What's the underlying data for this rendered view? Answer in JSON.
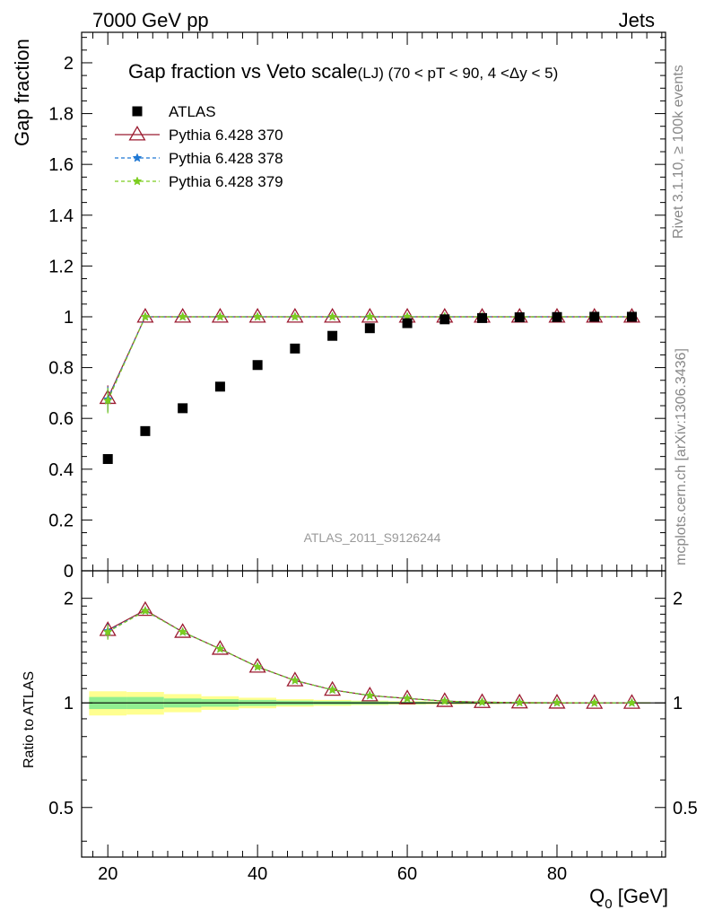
{
  "header": {
    "left": "7000 GeV pp",
    "right": "Jets"
  },
  "side_labels": {
    "rivet": "Rivet 3.1.10, ≥ 100k events",
    "mcplots": "mcplots.cern.ch [arXiv:1306.3436]"
  },
  "chart_data": [
    {
      "type": "scatter",
      "title": "Gap fraction vs Veto scale",
      "subtitle": "(LJ) (70 < pT <  90, 4 <Δy < 5)",
      "ylabel": "Gap fraction",
      "xlabel": "",
      "watermark": "ATLAS_2011_S9126244",
      "xlim": [
        16.5,
        94.5
      ],
      "ylim": [
        0,
        2.12
      ],
      "yticks": [
        0,
        0.2,
        0.4,
        0.6,
        0.8,
        1,
        1.2,
        1.4,
        1.6,
        1.8,
        2
      ],
      "ytick_labels": [
        "0",
        "0.2",
        "0.4",
        "0.6",
        "0.8",
        "1",
        "1.2",
        "1.4",
        "1.6",
        "1.8",
        "2"
      ],
      "legend_position": "top-left",
      "x": [
        20,
        25,
        30,
        35,
        40,
        45,
        50,
        55,
        60,
        65,
        70,
        75,
        80,
        85,
        90
      ],
      "series": [
        {
          "name": "ATLAS",
          "marker": "square",
          "color": "#000000",
          "values": [
            0.44,
            0.55,
            0.64,
            0.725,
            0.81,
            0.875,
            0.925,
            0.955,
            0.975,
            0.99,
            0.995,
            0.998,
            0.999,
            1.0,
            1.0
          ]
        },
        {
          "name": "Pythia 6.428 370",
          "marker": "triangle",
          "color": "#9b1b30",
          "line": "solid",
          "values": [
            0.68,
            1.0,
            1.0,
            1.0,
            1.0,
            1.0,
            1.0,
            1.0,
            1.0,
            1.0,
            1.0,
            1.0,
            1.0,
            1.0,
            1.0
          ],
          "errors": [
            0.05,
            0,
            0,
            0,
            0,
            0,
            0,
            0,
            0,
            0,
            0,
            0,
            0,
            0,
            0
          ]
        },
        {
          "name": "Pythia 6.428 378",
          "marker": "star",
          "color": "#1f78d4",
          "line": "dashed",
          "values": [
            0.675,
            1.0,
            1.0,
            1.0,
            1.0,
            1.0,
            1.0,
            1.0,
            1.0,
            1.0,
            1.0,
            1.0,
            1.0,
            1.0,
            1.0
          ],
          "errors": [
            0.05,
            0,
            0,
            0,
            0,
            0,
            0,
            0,
            0,
            0,
            0,
            0,
            0,
            0,
            0
          ]
        },
        {
          "name": "Pythia 6.428 379",
          "marker": "star",
          "color": "#7ccd1f",
          "line": "dashed",
          "values": [
            0.67,
            1.0,
            1.0,
            1.0,
            1.0,
            1.0,
            1.0,
            1.0,
            1.0,
            1.0,
            1.0,
            1.0,
            1.0,
            1.0,
            1.0
          ],
          "errors": [
            0.05,
            0,
            0,
            0,
            0,
            0,
            0,
            0,
            0,
            0,
            0,
            0,
            0,
            0,
            0
          ]
        }
      ]
    },
    {
      "type": "scatter",
      "ylabel": "Ratio to ATLAS",
      "xlabel": "Q",
      "xlabel_sub": "0",
      "xlabel_unit": " [GeV]",
      "xlim": [
        16.5,
        94.5
      ],
      "ylim": [
        0.36,
        2.4
      ],
      "log_y": true,
      "xticks": [
        20,
        40,
        60,
        80
      ],
      "xtick_labels": [
        "20",
        "40",
        "60",
        "80"
      ],
      "yticks": [
        0.5,
        1,
        2
      ],
      "ytick_labels": [
        "0.5",
        "1",
        "2"
      ],
      "x": [
        20,
        25,
        30,
        35,
        40,
        45,
        50,
        55,
        60,
        65,
        70,
        75,
        80,
        85,
        90
      ],
      "bands": {
        "x_edges": [
          17.5,
          22.5,
          27.5,
          32.5,
          37.5,
          42.5,
          47.5,
          52.5,
          57.5,
          62.5,
          67.5,
          72.5,
          77.5,
          82.5,
          87.5,
          92.5
        ],
        "stat_color": "#90ee90",
        "total_color": "#ffff90",
        "stat": [
          0.04,
          0.04,
          0.03,
          0.025,
          0.02,
          0.015,
          0.012,
          0.01,
          0.008,
          0.006,
          0.005,
          0.004,
          0.003,
          0.003,
          0.003
        ],
        "total": [
          0.08,
          0.075,
          0.06,
          0.045,
          0.035,
          0.025,
          0.02,
          0.015,
          0.012,
          0.01,
          0.008,
          0.006,
          0.005,
          0.005,
          0.005
        ]
      },
      "series": [
        {
          "name": "Pythia 6.428 370",
          "color": "#9b1b30",
          "values": [
            1.62,
            1.85,
            1.6,
            1.43,
            1.27,
            1.16,
            1.09,
            1.05,
            1.03,
            1.012,
            1.005,
            1.002,
            1.001,
            1.0,
            1.0
          ],
          "errors": [
            0.08,
            0,
            0,
            0,
            0,
            0,
            0,
            0,
            0,
            0,
            0,
            0,
            0,
            0,
            0
          ]
        },
        {
          "name": "Pythia 6.428 378",
          "color": "#1f78d4",
          "values": [
            1.61,
            1.84,
            1.6,
            1.43,
            1.27,
            1.16,
            1.09,
            1.05,
            1.03,
            1.012,
            1.005,
            1.002,
            1.001,
            1.0,
            1.0
          ],
          "errors": [
            0.08,
            0,
            0,
            0,
            0,
            0,
            0,
            0,
            0,
            0,
            0,
            0,
            0,
            0,
            0
          ]
        },
        {
          "name": "Pythia 6.428 379",
          "color": "#7ccd1f",
          "values": [
            1.6,
            1.84,
            1.6,
            1.43,
            1.27,
            1.16,
            1.09,
            1.05,
            1.03,
            1.012,
            1.005,
            1.002,
            1.001,
            1.0,
            1.0
          ],
          "errors": [
            0.08,
            0,
            0,
            0,
            0,
            0,
            0,
            0,
            0,
            0,
            0,
            0,
            0,
            0,
            0
          ]
        }
      ]
    }
  ]
}
